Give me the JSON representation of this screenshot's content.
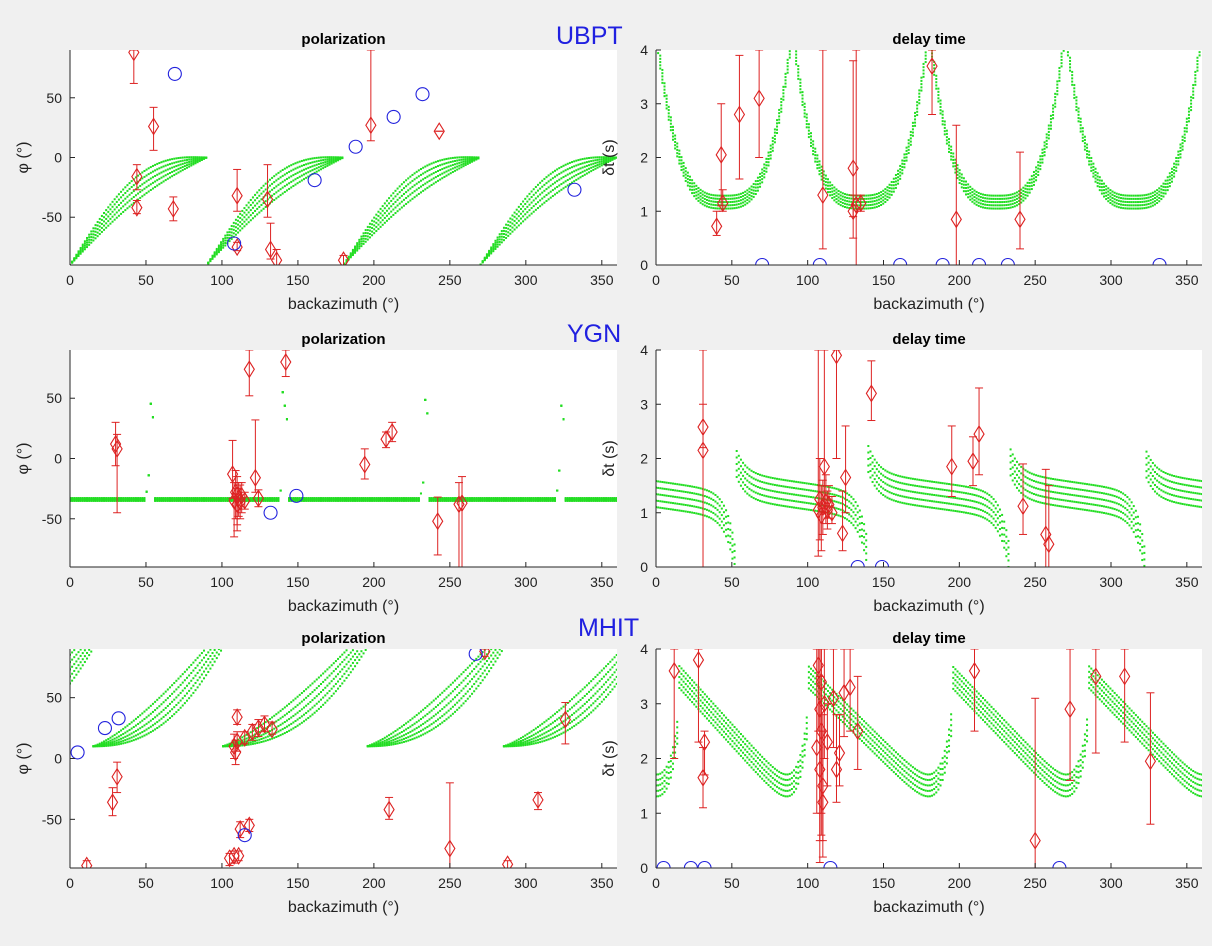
{
  "stations": [
    "UBPT",
    "YGN",
    "MHIT"
  ],
  "colors": {
    "model": "#22dd22",
    "measurement": "#dd2222",
    "null": "#2222dd",
    "station": "#2020e0"
  },
  "chart_data": [
    {
      "type": "scatter",
      "station": "UBPT",
      "row": 0,
      "col": 0,
      "title": "polarization",
      "xlabel": "backazimuth (°)",
      "ylabel": "φ (°)",
      "xlim": [
        0,
        360
      ],
      "ylim": [
        -90,
        90
      ],
      "xticks": [
        "0",
        "50",
        "100",
        "150",
        "200",
        "250",
        "300",
        "350"
      ],
      "yticks": [
        "50",
        "0",
        "-50"
      ],
      "ytick_values": [
        50,
        0,
        -50
      ],
      "model": {
        "kind": "pol_ubpt",
        "breaks": [
          90,
          180,
          270
        ]
      },
      "measurements": [
        {
          "x": 42,
          "y": 88,
          "lo": 62,
          "hi": 90
        },
        {
          "x": 44,
          "y": -16,
          "lo": -27,
          "hi": -6
        },
        {
          "x": 44,
          "y": -42,
          "lo": -47,
          "hi": -36
        },
        {
          "x": 55,
          "y": 26,
          "lo": 6,
          "hi": 42
        },
        {
          "x": 68,
          "y": -43,
          "lo": -53,
          "hi": -33
        },
        {
          "x": 110,
          "y": -32,
          "lo": -45,
          "hi": -10
        },
        {
          "x": 110,
          "y": -75,
          "lo": -78,
          "hi": -71
        },
        {
          "x": 130,
          "y": -35,
          "lo": -50,
          "hi": -6
        },
        {
          "x": 132,
          "y": -77,
          "lo": -85,
          "hi": -55
        },
        {
          "x": 136,
          "y": -86,
          "lo": -90,
          "hi": -77
        },
        {
          "x": 180,
          "y": -86,
          "lo": -90,
          "hi": -82
        },
        {
          "x": 198,
          "y": 27,
          "lo": 14,
          "hi": 90
        },
        {
          "x": 243,
          "y": 22,
          "lo": 22,
          "hi": 22
        }
      ],
      "nulls": [
        {
          "x": 69,
          "y": 70
        },
        {
          "x": 108,
          "y": -72
        },
        {
          "x": 161,
          "y": -19
        },
        {
          "x": 188,
          "y": 9
        },
        {
          "x": 213,
          "y": 34
        },
        {
          "x": 232,
          "y": 53
        },
        {
          "x": 332,
          "y": -27
        }
      ]
    },
    {
      "type": "scatter",
      "station": "UBPT",
      "row": 0,
      "col": 1,
      "title": "delay time",
      "xlabel": "backazimuth (°)",
      "ylabel": "δt (s)",
      "xlim": [
        0,
        360
      ],
      "ylim": [
        0,
        4
      ],
      "xticks": [
        "0",
        "50",
        "100",
        "150",
        "200",
        "250",
        "300",
        "350"
      ],
      "yticks": [
        "4",
        "3",
        "2",
        "1",
        "0"
      ],
      "ytick_values": [
        4,
        3,
        2,
        1,
        0
      ],
      "model": {
        "kind": "dt_ubpt",
        "breaks": [
          90,
          180,
          270
        ]
      },
      "measurements": [
        {
          "x": 40,
          "y": 0.72,
          "lo": 0.55,
          "hi": 1.0
        },
        {
          "x": 43,
          "y": 2.05,
          "lo": 1.1,
          "hi": 3.0
        },
        {
          "x": 44,
          "y": 1.15,
          "lo": 1.0,
          "hi": 1.4
        },
        {
          "x": 55,
          "y": 2.8,
          "lo": 1.6,
          "hi": 3.9
        },
        {
          "x": 68,
          "y": 3.1,
          "lo": 2.0,
          "hi": 4.0
        },
        {
          "x": 110,
          "y": 1.3,
          "lo": 0.3,
          "hi": 4.0
        },
        {
          "x": 130,
          "y": 1.8,
          "lo": 0.9,
          "hi": 3.8
        },
        {
          "x": 130,
          "y": 1.0,
          "lo": 0.5,
          "hi": 1.3
        },
        {
          "x": 132,
          "y": 1.12,
          "lo": 0.0,
          "hi": 4.0
        },
        {
          "x": 135,
          "y": 1.15,
          "lo": 1.0,
          "hi": 1.3
        },
        {
          "x": 182,
          "y": 3.7,
          "lo": 2.8,
          "hi": 4.0
        },
        {
          "x": 198,
          "y": 0.85,
          "lo": 0.0,
          "hi": 2.6
        },
        {
          "x": 240,
          "y": 0.85,
          "lo": 0.3,
          "hi": 2.1
        }
      ],
      "nulls": [
        {
          "x": 70,
          "y": 0
        },
        {
          "x": 108,
          "y": 0
        },
        {
          "x": 161,
          "y": 0
        },
        {
          "x": 189,
          "y": 0
        },
        {
          "x": 213,
          "y": 0
        },
        {
          "x": 232,
          "y": 0
        },
        {
          "x": 332,
          "y": 0
        }
      ]
    },
    {
      "type": "scatter",
      "station": "YGN",
      "row": 1,
      "col": 0,
      "title": "polarization",
      "xlabel": "backazimuth (°)",
      "ylabel": "φ (°)",
      "xlim": [
        0,
        360
      ],
      "ylim": [
        -90,
        90
      ],
      "xticks": [
        "0",
        "50",
        "100",
        "150",
        "200",
        "250",
        "300",
        "350"
      ],
      "yticks": [
        "50",
        "0",
        "-50"
      ],
      "ytick_values": [
        50,
        0,
        -50
      ],
      "model": {
        "kind": "pol_ygn",
        "breaks": [
          52,
          140,
          233,
          322
        ]
      },
      "measurements": [
        {
          "x": 30,
          "y": 12,
          "lo": -6,
          "hi": 30
        },
        {
          "x": 31,
          "y": 8,
          "lo": -45,
          "hi": 20
        },
        {
          "x": 107,
          "y": -13,
          "lo": -33,
          "hi": 15
        },
        {
          "x": 108,
          "y": -35,
          "lo": -65,
          "hi": -20
        },
        {
          "x": 109,
          "y": -28,
          "lo": -50,
          "hi": -10
        },
        {
          "x": 110,
          "y": -38,
          "lo": -60,
          "hi": -25
        },
        {
          "x": 110,
          "y": -30,
          "lo": -55,
          "hi": -15
        },
        {
          "x": 111,
          "y": -33,
          "lo": -48,
          "hi": -20
        },
        {
          "x": 112,
          "y": -36,
          "lo": -50,
          "hi": -22
        },
        {
          "x": 113,
          "y": -31,
          "lo": -45,
          "hi": -20
        },
        {
          "x": 115,
          "y": -35,
          "lo": -42,
          "hi": -28
        },
        {
          "x": 118,
          "y": 74,
          "lo": 52,
          "hi": 90
        },
        {
          "x": 122,
          "y": -16,
          "lo": -28,
          "hi": 32
        },
        {
          "x": 124,
          "y": -33,
          "lo": -40,
          "hi": -26
        },
        {
          "x": 142,
          "y": 80,
          "lo": 68,
          "hi": 90
        },
        {
          "x": 194,
          "y": -5,
          "lo": -17,
          "hi": 8
        },
        {
          "x": 208,
          "y": 16,
          "lo": 9,
          "hi": 22
        },
        {
          "x": 212,
          "y": 22,
          "lo": 14,
          "hi": 30
        },
        {
          "x": 242,
          "y": -52,
          "lo": -80,
          "hi": -32
        },
        {
          "x": 256,
          "y": -38,
          "lo": -90,
          "hi": -20
        },
        {
          "x": 258,
          "y": -37,
          "lo": -90,
          "hi": -15
        }
      ],
      "nulls": [
        {
          "x": 132,
          "y": -45
        },
        {
          "x": 149,
          "y": -31
        }
      ]
    },
    {
      "type": "scatter",
      "station": "YGN",
      "row": 1,
      "col": 1,
      "title": "delay time",
      "xlabel": "backazimuth (°)",
      "ylabel": "δt (s)",
      "xlim": [
        0,
        360
      ],
      "ylim": [
        0,
        4
      ],
      "xticks": [
        "0",
        "50",
        "100",
        "150",
        "200",
        "250",
        "300",
        "350"
      ],
      "yticks": [
        "4",
        "3",
        "2",
        "1",
        "0"
      ],
      "ytick_values": [
        4,
        3,
        2,
        1,
        0
      ],
      "model": {
        "kind": "dt_ygn",
        "breaks": [
          52,
          140,
          233,
          322
        ]
      },
      "measurements": [
        {
          "x": 31,
          "y": 2.58,
          "lo": 2.2,
          "hi": 3.0
        },
        {
          "x": 31,
          "y": 2.15,
          "lo": 0.0,
          "hi": 4.0
        },
        {
          "x": 107,
          "y": 1.05,
          "lo": 0.2,
          "hi": 4.0
        },
        {
          "x": 108,
          "y": 1.25,
          "lo": 0.5,
          "hi": 2.0
        },
        {
          "x": 109,
          "y": 0.95,
          "lo": 0.3,
          "hi": 1.5
        },
        {
          "x": 110,
          "y": 1.1,
          "lo": 0.6,
          "hi": 1.6
        },
        {
          "x": 111,
          "y": 1.85,
          "lo": 1.0,
          "hi": 4.0
        },
        {
          "x": 112,
          "y": 1.2,
          "lo": 0.8,
          "hi": 1.7
        },
        {
          "x": 113,
          "y": 1.05,
          "lo": 0.7,
          "hi": 1.4
        },
        {
          "x": 114,
          "y": 1.15,
          "lo": 0.9,
          "hi": 1.5
        },
        {
          "x": 116,
          "y": 1.0,
          "lo": 0.8,
          "hi": 1.3
        },
        {
          "x": 119,
          "y": 3.9,
          "lo": 2.0,
          "hi": 4.0
        },
        {
          "x": 123,
          "y": 0.62,
          "lo": 0.3,
          "hi": 1.4
        },
        {
          "x": 125,
          "y": 1.65,
          "lo": 1.0,
          "hi": 2.6
        },
        {
          "x": 142,
          "y": 3.2,
          "lo": 2.7,
          "hi": 3.8
        },
        {
          "x": 195,
          "y": 1.85,
          "lo": 1.3,
          "hi": 2.6
        },
        {
          "x": 209,
          "y": 1.95,
          "lo": 1.5,
          "hi": 2.4
        },
        {
          "x": 213,
          "y": 2.45,
          "lo": 1.7,
          "hi": 3.3
        },
        {
          "x": 242,
          "y": 1.12,
          "lo": 0.6,
          "hi": 1.9
        },
        {
          "x": 257,
          "y": 0.6,
          "lo": 0.0,
          "hi": 1.8
        },
        {
          "x": 259,
          "y": 0.42,
          "lo": 0.0,
          "hi": 1.5
        }
      ],
      "nulls": [
        {
          "x": 133,
          "y": 0
        },
        {
          "x": 149,
          "y": 0
        }
      ]
    },
    {
      "type": "scatter",
      "station": "MHIT",
      "row": 2,
      "col": 0,
      "title": "polarization",
      "xlabel": "backazimuth (°)",
      "ylabel": "φ (°)",
      "xlim": [
        0,
        360
      ],
      "ylim": [
        -90,
        90
      ],
      "xticks": [
        "0",
        "50",
        "100",
        "150",
        "200",
        "250",
        "300",
        "350"
      ],
      "yticks": [
        "50",
        "0",
        "-50"
      ],
      "ytick_values": [
        50,
        0,
        -50
      ],
      "model": {
        "kind": "pol_mhit",
        "breaks": [
          15,
          100,
          195,
          285
        ]
      },
      "measurements": [
        {
          "x": 11,
          "y": -88,
          "lo": -90,
          "hi": -84
        },
        {
          "x": 28,
          "y": -36,
          "lo": -47,
          "hi": -24
        },
        {
          "x": 31,
          "y": -15,
          "lo": -28,
          "hi": -3
        },
        {
          "x": 105,
          "y": -82,
          "lo": -88,
          "hi": -78
        },
        {
          "x": 108,
          "y": -80,
          "lo": -86,
          "hi": -76
        },
        {
          "x": 108,
          "y": 10,
          "lo": 0,
          "hi": 20
        },
        {
          "x": 109,
          "y": 5,
          "lo": -5,
          "hi": 15
        },
        {
          "x": 110,
          "y": 14,
          "lo": 6,
          "hi": 22
        },
        {
          "x": 110,
          "y": 34,
          "lo": 28,
          "hi": 40
        },
        {
          "x": 111,
          "y": -80,
          "lo": -84,
          "hi": -76
        },
        {
          "x": 112,
          "y": -58,
          "lo": -65,
          "hi": -52
        },
        {
          "x": 115,
          "y": 17,
          "lo": 12,
          "hi": 22
        },
        {
          "x": 118,
          "y": -55,
          "lo": -60,
          "hi": -50
        },
        {
          "x": 120,
          "y": 22,
          "lo": 15,
          "hi": 28
        },
        {
          "x": 124,
          "y": 25,
          "lo": 18,
          "hi": 32
        },
        {
          "x": 128,
          "y": 28,
          "lo": 22,
          "hi": 35
        },
        {
          "x": 133,
          "y": 24,
          "lo": 20,
          "hi": 30
        },
        {
          "x": 210,
          "y": -42,
          "lo": -50,
          "hi": -32
        },
        {
          "x": 250,
          "y": -74,
          "lo": -90,
          "hi": -20
        },
        {
          "x": 273,
          "y": 88,
          "lo": 84,
          "hi": 90
        },
        {
          "x": 288,
          "y": -87,
          "lo": -90,
          "hi": -84
        },
        {
          "x": 308,
          "y": -34,
          "lo": -42,
          "hi": -28
        },
        {
          "x": 326,
          "y": 32,
          "lo": 12,
          "hi": 46
        }
      ],
      "nulls": [
        {
          "x": 5,
          "y": 5
        },
        {
          "x": 23,
          "y": 25
        },
        {
          "x": 32,
          "y": 33
        },
        {
          "x": 115,
          "y": -63
        },
        {
          "x": 267,
          "y": 86
        }
      ]
    },
    {
      "type": "scatter",
      "station": "MHIT",
      "row": 2,
      "col": 1,
      "title": "delay time",
      "xlabel": "backazimuth (°)",
      "ylabel": "δt (s)",
      "xlim": [
        0,
        360
      ],
      "ylim": [
        0,
        4
      ],
      "xticks": [
        "0",
        "50",
        "100",
        "150",
        "200",
        "250",
        "300",
        "350"
      ],
      "yticks": [
        "4",
        "3",
        "2",
        "1",
        "0"
      ],
      "ytick_values": [
        4,
        3,
        2,
        1,
        0
      ],
      "model": {
        "kind": "dt_mhit",
        "breaks": [
          15,
          100,
          195,
          285
        ]
      },
      "measurements": [
        {
          "x": 12,
          "y": 3.6,
          "lo": 2.0,
          "hi": 4.0
        },
        {
          "x": 28,
          "y": 3.8,
          "lo": 2.3,
          "hi": 4.0
        },
        {
          "x": 32,
          "y": 2.3,
          "lo": 1.7,
          "hi": 2.5
        },
        {
          "x": 31,
          "y": 1.65,
          "lo": 1.1,
          "hi": 2.2
        },
        {
          "x": 106,
          "y": 2.2,
          "lo": 1.0,
          "hi": 4.0
        },
        {
          "x": 107,
          "y": 3.7,
          "lo": 2.5,
          "hi": 4.0
        },
        {
          "x": 108,
          "y": 2.9,
          "lo": 0.5,
          "hi": 4.0
        },
        {
          "x": 108,
          "y": 1.8,
          "lo": 0.1,
          "hi": 3.5
        },
        {
          "x": 109,
          "y": 3.4,
          "lo": 1.0,
          "hi": 4.0
        },
        {
          "x": 109,
          "y": 2.5,
          "lo": 0.6,
          "hi": 4.0
        },
        {
          "x": 110,
          "y": 1.5,
          "lo": 0.5,
          "hi": 2.8
        },
        {
          "x": 110,
          "y": 1.2,
          "lo": 0.2,
          "hi": 2.5
        },
        {
          "x": 111,
          "y": 3.0,
          "lo": 2.0,
          "hi": 4.0
        },
        {
          "x": 113,
          "y": 2.3,
          "lo": 1.5,
          "hi": 3.0
        },
        {
          "x": 117,
          "y": 3.1,
          "lo": 2.2,
          "hi": 4.0
        },
        {
          "x": 119,
          "y": 1.8,
          "lo": 1.2,
          "hi": 2.8
        },
        {
          "x": 121,
          "y": 2.1,
          "lo": 1.5,
          "hi": 2.8
        },
        {
          "x": 124,
          "y": 3.2,
          "lo": 2.4,
          "hi": 4.0
        },
        {
          "x": 128,
          "y": 3.3,
          "lo": 2.5,
          "hi": 4.0
        },
        {
          "x": 133,
          "y": 2.5,
          "lo": 1.8,
          "hi": 3.5
        },
        {
          "x": 210,
          "y": 3.6,
          "lo": 2.5,
          "hi": 4.0
        },
        {
          "x": 250,
          "y": 0.5,
          "lo": 0.0,
          "hi": 3.1
        },
        {
          "x": 273,
          "y": 2.9,
          "lo": 1.6,
          "hi": 4.0
        },
        {
          "x": 290,
          "y": 3.5,
          "lo": 2.1,
          "hi": 4.0
        },
        {
          "x": 309,
          "y": 3.5,
          "lo": 2.3,
          "hi": 4.0
        },
        {
          "x": 326,
          "y": 1.95,
          "lo": 0.8,
          "hi": 3.2
        }
      ],
      "nulls": [
        {
          "x": 5,
          "y": 0
        },
        {
          "x": 23,
          "y": 0
        },
        {
          "x": 32,
          "y": 0
        },
        {
          "x": 115,
          "y": 0
        },
        {
          "x": 266,
          "y": 0
        }
      ]
    }
  ]
}
